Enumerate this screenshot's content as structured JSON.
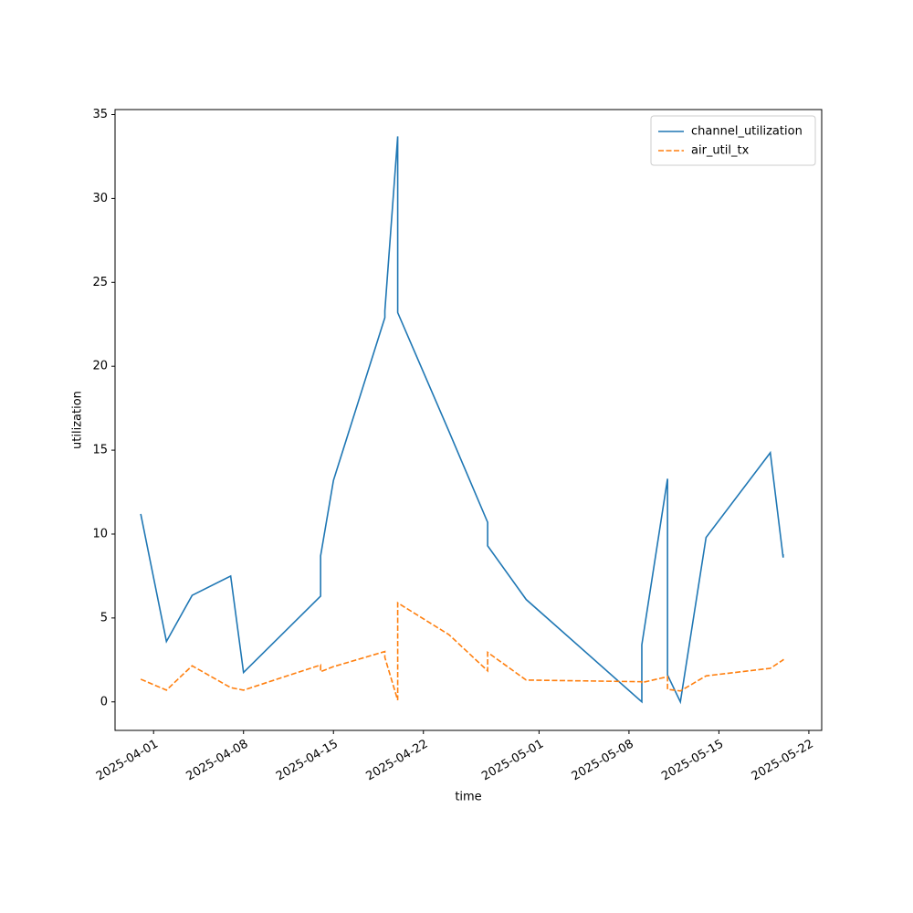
{
  "chart_data": {
    "type": "line",
    "xlabel": "time",
    "ylabel": "utilization",
    "x": [
      "2025-03-31",
      "2025-04-02",
      "2025-04-04",
      "2025-04-07",
      "2025-04-08",
      "2025-04-14",
      "2025-04-14",
      "2025-04-15",
      "2025-04-19",
      "2025-04-19",
      "2025-04-20",
      "2025-04-20",
      "2025-04-24",
      "2025-04-27",
      "2025-04-27",
      "2025-04-30",
      "2025-05-09",
      "2025-05-09",
      "2025-05-11",
      "2025-05-11",
      "2025-05-12",
      "2025-05-14",
      "2025-05-19",
      "2025-05-20",
      "2025-05-20"
    ],
    "series": [
      {
        "name": "channel_utilization",
        "color": "#1f77b4",
        "linestyle": "solid",
        "values": [
          11.2,
          3.6,
          6.35,
          7.5,
          1.75,
          6.3,
          8.7,
          13.2,
          22.9,
          23.3,
          33.7,
          23.2,
          16.1,
          10.7,
          9.3,
          6.1,
          0,
          3.4,
          13.3,
          1.6,
          0,
          9.8,
          14.85,
          8.6,
          8.8
        ]
      },
      {
        "name": "air_util_tx",
        "color": "#ff7f0e",
        "linestyle": "dashed",
        "values": [
          1.35,
          0.7,
          2.15,
          0.85,
          0.7,
          2.2,
          1.8,
          2.1,
          3.0,
          2.65,
          0.1,
          5.9,
          4.0,
          1.85,
          2.95,
          1.3,
          1.2,
          1.15,
          1.5,
          0.75,
          0.65,
          1.55,
          2.0,
          2.5,
          2.55
        ]
      }
    ],
    "xlim": [
      "2025-03-29",
      "2025-05-23"
    ],
    "xticks": [
      "2025-04-01",
      "2025-04-08",
      "2025-04-15",
      "2025-04-22",
      "2025-05-01",
      "2025-05-08",
      "2025-05-15",
      "2025-05-22"
    ],
    "ylim": [
      -1.7,
      35.3
    ],
    "yticks": [
      0,
      5,
      10,
      15,
      20,
      25,
      30,
      35
    ],
    "grid": false,
    "legend": "upper right"
  }
}
